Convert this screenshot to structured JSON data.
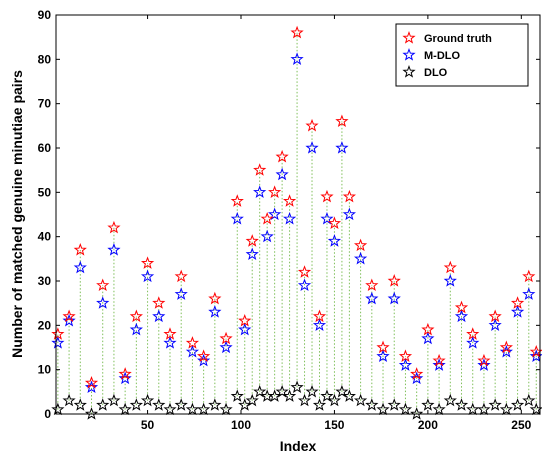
{
  "chart_data": {
    "type": "scatter",
    "xlabel": "Index",
    "ylabel": "Number of matched genuine minutiae pairs",
    "xlim": [
      1,
      260
    ],
    "ylim": [
      0,
      90
    ],
    "xticks": [
      50,
      100,
      150,
      200,
      250
    ],
    "yticks": [
      0,
      10,
      20,
      30,
      40,
      50,
      60,
      70,
      80,
      90
    ],
    "grid": false,
    "legend_position": "top-right",
    "marker": "star",
    "stems": "dotted green vertical lines from DLO value up to ground-truth value",
    "stem_color": "#7fbf5a",
    "series": [
      {
        "name": "Ground truth",
        "color": "#ff0000",
        "x": [
          2,
          8,
          14,
          20,
          26,
          32,
          38,
          44,
          50,
          56,
          62,
          68,
          74,
          80,
          86,
          92,
          98,
          102,
          106,
          110,
          114,
          118,
          122,
          126,
          130,
          134,
          138,
          142,
          146,
          150,
          154,
          158,
          164,
          170,
          176,
          182,
          188,
          194,
          200,
          206,
          212,
          218,
          224,
          230,
          236,
          242,
          248,
          254,
          258
        ],
        "values": [
          18,
          22,
          37,
          7,
          29,
          42,
          9,
          22,
          34,
          25,
          18,
          31,
          16,
          13,
          26,
          17,
          48,
          21,
          39,
          55,
          44,
          50,
          58,
          48,
          86,
          32,
          65,
          22,
          49,
          43,
          66,
          49,
          38,
          29,
          15,
          30,
          13,
          9,
          19,
          12,
          33,
          24,
          18,
          12,
          22,
          15,
          25,
          31,
          14
        ]
      },
      {
        "name": "M-DLO",
        "color": "#0000ff",
        "x": [
          2,
          8,
          14,
          20,
          26,
          32,
          38,
          44,
          50,
          56,
          62,
          68,
          74,
          80,
          86,
          92,
          98,
          102,
          106,
          110,
          114,
          118,
          122,
          126,
          130,
          134,
          138,
          142,
          146,
          150,
          154,
          158,
          164,
          170,
          176,
          182,
          188,
          194,
          200,
          206,
          212,
          218,
          224,
          230,
          236,
          242,
          248,
          254,
          258
        ],
        "values": [
          16,
          21,
          33,
          6,
          25,
          37,
          8,
          19,
          31,
          22,
          16,
          27,
          14,
          12,
          23,
          15,
          44,
          19,
          36,
          50,
          40,
          45,
          54,
          44,
          80,
          29,
          60,
          20,
          44,
          39,
          60,
          45,
          35,
          26,
          13,
          26,
          11,
          8,
          17,
          11,
          30,
          22,
          16,
          11,
          20,
          14,
          23,
          27,
          13
        ]
      },
      {
        "name": "DLO",
        "color": "#000000",
        "x": [
          2,
          8,
          14,
          20,
          26,
          32,
          38,
          44,
          50,
          56,
          62,
          68,
          74,
          80,
          86,
          92,
          98,
          102,
          106,
          110,
          114,
          118,
          122,
          126,
          130,
          134,
          138,
          142,
          146,
          150,
          154,
          158,
          164,
          170,
          176,
          182,
          188,
          194,
          200,
          206,
          212,
          218,
          224,
          230,
          236,
          242,
          248,
          254,
          258
        ],
        "values": [
          1,
          3,
          2,
          0,
          2,
          3,
          1,
          2,
          3,
          2,
          1,
          2,
          1,
          1,
          2,
          1,
          4,
          2,
          3,
          5,
          4,
          4,
          5,
          4,
          6,
          3,
          5,
          2,
          4,
          3,
          5,
          4,
          3,
          2,
          1,
          2,
          1,
          0,
          2,
          1,
          3,
          2,
          1,
          1,
          2,
          1,
          2,
          3,
          1
        ]
      }
    ]
  }
}
